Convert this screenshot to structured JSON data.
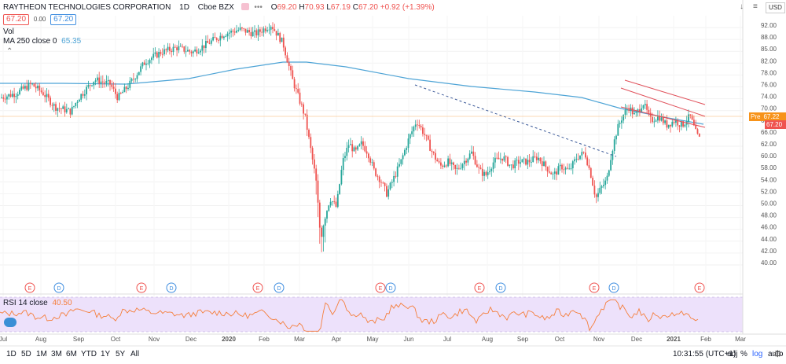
{
  "header": {
    "symbol_name": "RAYTHEON TECHNOLOGIES CORPORATION",
    "interval": "1D",
    "exchange": "Cboe BZX",
    "ohlc": [
      {
        "label": "O",
        "value": "69.20"
      },
      {
        "label": "H",
        "value": "70.93"
      },
      {
        "label": "L",
        "value": "67.19"
      },
      {
        "label": "C",
        "value": "67.20"
      }
    ],
    "change": "+0.92 (+1.39%)",
    "sell_price": "67.20",
    "spread": "0.00",
    "buy_price": "67.20",
    "currency": "USD"
  },
  "indicators": {
    "volume_label": "Vol",
    "ma_label": "MA 250 close 0",
    "ma_value": "65.35",
    "rsi_label": "RSI 14 close",
    "rsi_value": "40.50"
  },
  "price_axis": {
    "pre_label": "Pre",
    "pre_value": "67.22",
    "last_value": "67.20"
  },
  "bottom_bar": {
    "ranges": [
      "1D",
      "5D",
      "1M",
      "3M",
      "6M",
      "YTD",
      "1Y",
      "5Y",
      "All"
    ],
    "time": "10:31:55 (UTC+1)",
    "options": [
      "adj",
      "%",
      "log",
      "auto"
    ]
  },
  "colors": {
    "up": "#26a69a",
    "down": "#ef5350",
    "ma": "#4ea4d6",
    "rsi": "#f57f3c",
    "rsi_band": "#ede1fb",
    "trendline": "#3b5998",
    "channel": "#e0505a"
  },
  "chart_data": {
    "type": "candlestick",
    "y_ticks": [
      "92.00",
      "88.00",
      "85.00",
      "82.00",
      "78.00",
      "76.00",
      "74.00",
      "70.00",
      "68.00",
      "66.00",
      "62.00",
      "60.00",
      "58.00",
      "54.00",
      "52.00",
      "50.00",
      "48.00",
      "46.00",
      "44.00",
      "42.00",
      "40.00"
    ],
    "x_ticks": [
      "Jul",
      "Aug",
      "Sep",
      "Oct",
      "Nov",
      "Dec",
      "2020",
      "Feb",
      "Mar",
      "Apr",
      "May",
      "Jun",
      "Jul",
      "Aug",
      "Sep",
      "Oct",
      "Nov",
      "Dec",
      "2021",
      "Feb",
      "Mar"
    ],
    "rsi_ticks": [
      "60.00",
      "40.00"
    ],
    "events": [
      {
        "type": "E"
      },
      {
        "type": "D"
      },
      {
        "type": "E"
      },
      {
        "type": "D"
      },
      {
        "type": "E"
      },
      {
        "type": "D"
      },
      {
        "type": "E"
      },
      {
        "type": "D"
      },
      {
        "type": "E"
      },
      {
        "type": "D"
      },
      {
        "type": "E"
      },
      {
        "type": "D"
      },
      {
        "type": "E"
      }
    ],
    "ylim": [
      40,
      94
    ]
  }
}
